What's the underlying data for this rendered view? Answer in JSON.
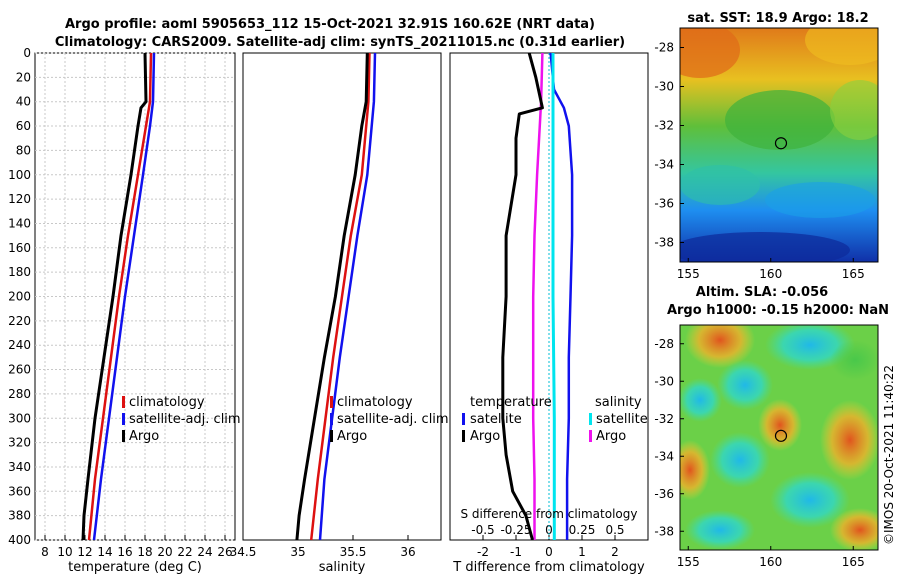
{
  "figure": {
    "title_line1": "Argo profile: aoml 5905653_112 15-Oct-2021 32.91S 160.62E (NRT data)",
    "title_line2": "Climatology: CARS2009. Satellite-adj clim: synTS_20211015.nc (0.31d earlier)",
    "copyright": "©IMOS 20-Oct-2021 11:40:22"
  },
  "colors": {
    "climatology": "#dd1111",
    "satellite": "#1111ee",
    "argo": "#000000",
    "salinity_sat": "#00e5ee",
    "salinity_argo": "#ee11ee"
  },
  "chart_data": [
    {
      "type": "line",
      "id": "temperature",
      "xlabel": "temperature (deg C)",
      "ylabel": "",
      "xlim": [
        7,
        27
      ],
      "ylim": [
        400,
        0
      ],
      "xticks": [
        8,
        10,
        12,
        14,
        16,
        18,
        20,
        22,
        24,
        26
      ],
      "yticks": [
        0,
        20,
        40,
        60,
        80,
        100,
        120,
        140,
        160,
        180,
        200,
        220,
        240,
        260,
        280,
        300,
        320,
        340,
        360,
        380,
        400
      ],
      "legend": [
        "climatology",
        "satellite-adj. clim",
        "Argo"
      ],
      "legend_position": "lower-right",
      "series": [
        {
          "name": "climatology",
          "depth": [
            0,
            40,
            60,
            100,
            150,
            200,
            250,
            300,
            350,
            400
          ],
          "values": [
            18.6,
            18.5,
            18.1,
            17.3,
            16.3,
            15.4,
            14.6,
            13.8,
            13.0,
            12.4
          ]
        },
        {
          "name": "satellite-adj. clim",
          "depth": [
            0,
            40,
            60,
            100,
            150,
            200,
            250,
            300,
            350,
            400
          ],
          "values": [
            18.9,
            18.8,
            18.5,
            17.8,
            16.9,
            16.0,
            15.2,
            14.4,
            13.6,
            12.9
          ]
        },
        {
          "name": "Argo",
          "depth": [
            0,
            40,
            45,
            60,
            100,
            150,
            200,
            250,
            300,
            350,
            380,
            400
          ],
          "values": [
            18.0,
            18.1,
            17.6,
            17.3,
            16.6,
            15.6,
            14.8,
            13.9,
            13.0,
            12.3,
            11.9,
            11.8
          ]
        }
      ]
    },
    {
      "type": "line",
      "id": "salinity",
      "xlabel": "salinity",
      "ylabel": "",
      "xlim": [
        34.5,
        36.3
      ],
      "ylim": [
        400,
        0
      ],
      "xticks": [
        34.5,
        35,
        35.5,
        36
      ],
      "legend": [
        "climatology",
        "satellite-adj. clim",
        "Argo"
      ],
      "legend_position": "lower-right",
      "series": [
        {
          "name": "climatology",
          "depth": [
            0,
            40,
            100,
            150,
            200,
            250,
            300,
            350,
            400
          ],
          "values": [
            35.65,
            35.64,
            35.58,
            35.48,
            35.4,
            35.32,
            35.25,
            35.18,
            35.12
          ]
        },
        {
          "name": "satellite-adj. clim",
          "depth": [
            0,
            40,
            100,
            150,
            200,
            250,
            300,
            350,
            400
          ],
          "values": [
            35.7,
            35.69,
            35.63,
            35.54,
            35.46,
            35.38,
            35.31,
            35.24,
            35.2
          ]
        },
        {
          "name": "Argo",
          "depth": [
            0,
            40,
            60,
            100,
            150,
            200,
            250,
            300,
            350,
            380,
            400
          ],
          "values": [
            35.63,
            35.62,
            35.58,
            35.52,
            35.42,
            35.34,
            35.24,
            35.15,
            35.06,
            35.01,
            34.99
          ]
        }
      ]
    },
    {
      "type": "line",
      "id": "difference",
      "xlabel": "T difference from climatology",
      "xlabel_top": "S difference from climatology",
      "xlim": [
        -3,
        3
      ],
      "ylim": [
        400,
        0
      ],
      "xticks": [
        -2,
        -1,
        0,
        1,
        2
      ],
      "xticklabels": [
        "-2",
        "-1",
        "0",
        "1",
        "2"
      ],
      "top_ticklabels": [
        "-0.5",
        "-0.25",
        "0",
        "0.25",
        "0.5"
      ],
      "legend_temperature_title": "temperature",
      "legend_salinity_title": "salinity",
      "legend": [
        "satellite",
        "Argo",
        "satellite",
        "Argo"
      ],
      "series": [
        {
          "name": "temperature satellite",
          "depth": [
            0,
            30,
            45,
            60,
            100,
            150,
            200,
            250,
            300,
            350,
            400
          ],
          "values": [
            0.05,
            0.15,
            0.45,
            0.6,
            0.7,
            0.7,
            0.65,
            0.6,
            0.6,
            0.55,
            0.55
          ]
        },
        {
          "name": "temperature Argo",
          "depth": [
            0,
            20,
            45,
            50,
            70,
            100,
            150,
            200,
            250,
            300,
            330,
            360,
            380,
            400
          ],
          "values": [
            -0.6,
            -0.4,
            -0.2,
            -0.9,
            -1.0,
            -1.0,
            -1.3,
            -1.3,
            -1.4,
            -1.4,
            -1.3,
            -1.1,
            -0.7,
            -0.5
          ]
        },
        {
          "name": "salinity satellite",
          "depth": [
            0,
            100,
            200,
            300,
            400
          ],
          "values": [
            0.03,
            0.03,
            0.03,
            0.04,
            0.04
          ]
        },
        {
          "name": "salinity Argo",
          "depth": [
            0,
            40,
            100,
            150,
            200,
            250,
            300,
            350,
            400
          ],
          "values": [
            -0.05,
            -0.06,
            -0.09,
            -0.11,
            -0.12,
            -0.12,
            -0.12,
            -0.11,
            -0.11
          ]
        }
      ]
    },
    {
      "type": "heatmap",
      "id": "sst-map",
      "title": "sat. SST: 18.9 Argo: 18.2",
      "xlim": [
        154.5,
        166.5
      ],
      "ylim": [
        -39,
        -27
      ],
      "xticks": [
        155,
        160,
        165
      ],
      "yticks": [
        -28,
        -30,
        -32,
        -34,
        -36,
        -38
      ],
      "profile_marker": {
        "lon": 160.62,
        "lat": -32.91
      }
    },
    {
      "type": "heatmap",
      "id": "sla-map",
      "title_line1": "Altim. SLA: -0.056",
      "title_line2": "Argo h1000: -0.15 h2000: NaN",
      "xlim": [
        154.5,
        166.5
      ],
      "ylim": [
        -39,
        -27
      ],
      "xticks": [
        155,
        160,
        165
      ],
      "yticks": [
        -28,
        -30,
        -32,
        -34,
        -36,
        -38
      ],
      "profile_marker": {
        "lon": 160.62,
        "lat": -32.91
      }
    }
  ]
}
